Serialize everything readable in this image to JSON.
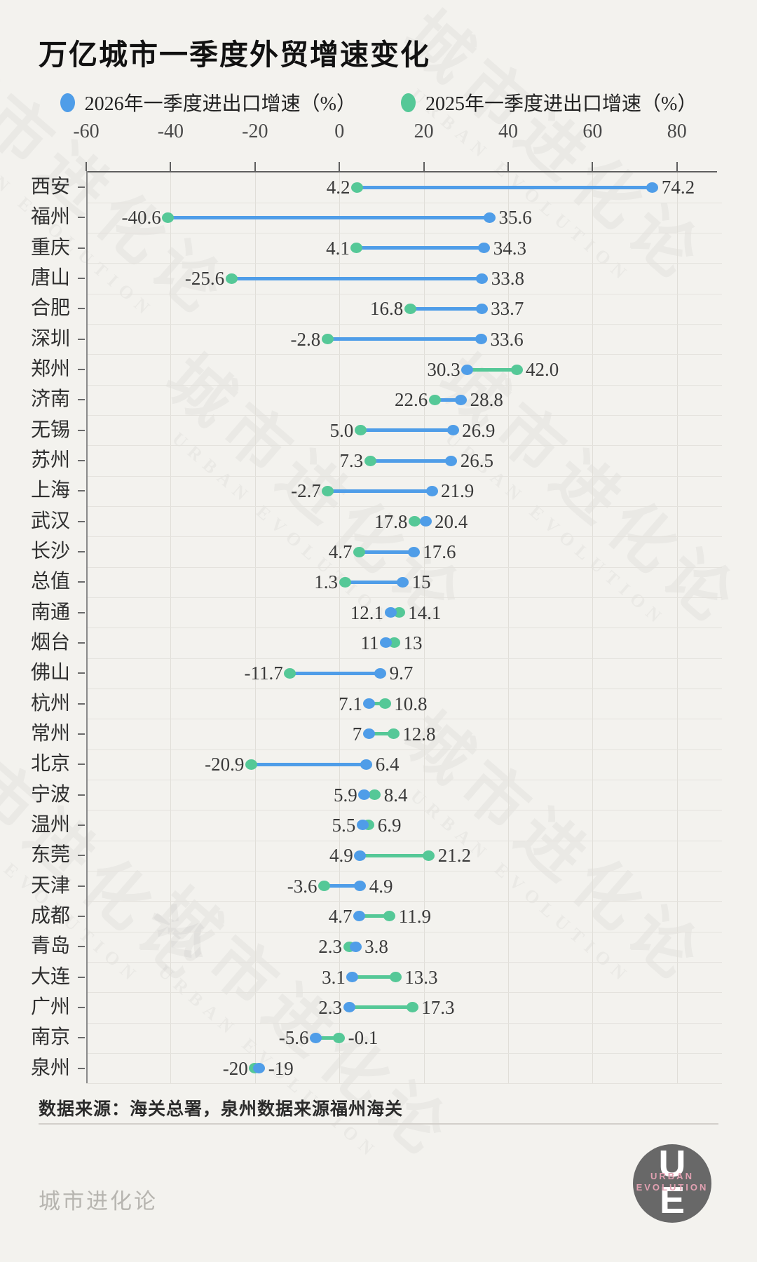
{
  "title": "万亿城市一季度外贸增速变化",
  "legend": [
    {
      "label": "2026年一季度进出口增速（%）",
      "color": "#4f9de8"
    },
    {
      "label": "2025年一季度进出口增速（%）",
      "color": "#55c897"
    }
  ],
  "source_note": "数据来源：海关总署，泉州数据来源福州海关",
  "footer": {
    "brand": "城市进化论",
    "logo_monogram_top": "U",
    "logo_monogram_bottom": "E",
    "logo_caption_line1": "URBAN",
    "logo_caption_line2": "EVOLUTION"
  },
  "watermark": {
    "big": "城市进化论",
    "small": "URBAN EVOLUTION"
  },
  "colors": {
    "blue": "#4f9de8",
    "green": "#55c897",
    "background": "#f3f2ee",
    "axis": "#5f5f5f",
    "grid": "#e0ded8",
    "value_label": "#3a3a3a"
  },
  "chart_data": {
    "type": "dumbbell",
    "title": "万亿城市一季度外贸增速变化",
    "x_axis": {
      "min": -60,
      "max": 80,
      "ticks": [
        -60,
        -40,
        -20,
        0,
        20,
        40,
        60,
        80
      ],
      "unit": "%"
    },
    "legend_position": "top",
    "grid": true,
    "series_names": [
      "2026年一季度进出口增速（%）",
      "2025年一季度进出口增速（%）"
    ],
    "rows": [
      {
        "city": "西安",
        "v2026": 74.2,
        "label2026": "74.2",
        "v2025": 4.2,
        "label2025": "4.2"
      },
      {
        "city": "福州",
        "v2026": 35.6,
        "label2026": "35.6",
        "v2025": -40.6,
        "label2025": "-40.6"
      },
      {
        "city": "重庆",
        "v2026": 34.3,
        "label2026": "34.3",
        "v2025": 4.1,
        "label2025": "4.1"
      },
      {
        "city": "唐山",
        "v2026": 33.8,
        "label2026": "33.8",
        "v2025": -25.6,
        "label2025": "-25.6"
      },
      {
        "city": "合肥",
        "v2026": 33.7,
        "label2026": "33.7",
        "v2025": 16.8,
        "label2025": "16.8"
      },
      {
        "city": "深圳",
        "v2026": 33.6,
        "label2026": "33.6",
        "v2025": -2.8,
        "label2025": "-2.8"
      },
      {
        "city": "郑州",
        "v2026": 30.3,
        "label2026": "30.3",
        "v2025": 42.0,
        "label2025": "42.0"
      },
      {
        "city": "济南",
        "v2026": 28.8,
        "label2026": "28.8",
        "v2025": 22.6,
        "label2025": "22.6"
      },
      {
        "city": "无锡",
        "v2026": 26.9,
        "label2026": "26.9",
        "v2025": 5.0,
        "label2025": "5.0"
      },
      {
        "city": "苏州",
        "v2026": 26.5,
        "label2026": "26.5",
        "v2025": 7.3,
        "label2025": "7.3"
      },
      {
        "city": "上海",
        "v2026": 21.9,
        "label2026": "21.9",
        "v2025": -2.7,
        "label2025": "-2.7"
      },
      {
        "city": "武汉",
        "v2026": 20.4,
        "label2026": "20.4",
        "v2025": 17.8,
        "label2025": "17.8"
      },
      {
        "city": "长沙",
        "v2026": 17.6,
        "label2026": "17.6",
        "v2025": 4.7,
        "label2025": "4.7"
      },
      {
        "city": "总值",
        "v2026": 15,
        "label2026": "15",
        "v2025": 1.3,
        "label2025": "1.3"
      },
      {
        "city": "南通",
        "v2026": 12.1,
        "label2026": "12.1",
        "v2025": 14.1,
        "label2025": "14.1"
      },
      {
        "city": "烟台",
        "v2026": 11,
        "label2026": "11",
        "v2025": 13,
        "label2025": "13"
      },
      {
        "city": "佛山",
        "v2026": 9.7,
        "label2026": "9.7",
        "v2025": -11.7,
        "label2025": "-11.7"
      },
      {
        "city": "杭州",
        "v2026": 7.1,
        "label2026": "7.1",
        "v2025": 10.8,
        "label2025": "10.8"
      },
      {
        "city": "常州",
        "v2026": 7,
        "label2026": "7",
        "v2025": 12.8,
        "label2025": "12.8"
      },
      {
        "city": "北京",
        "v2026": 6.4,
        "label2026": "6.4",
        "v2025": -20.9,
        "label2025": "-20.9"
      },
      {
        "city": "宁波",
        "v2026": 5.9,
        "label2026": "5.9",
        "v2025": 8.4,
        "label2025": "8.4"
      },
      {
        "city": "温州",
        "v2026": 5.5,
        "label2026": "5.5",
        "v2025": 6.9,
        "label2025": "6.9"
      },
      {
        "city": "东莞",
        "v2026": 4.9,
        "label2026": "4.9",
        "v2025": 21.2,
        "label2025": "21.2"
      },
      {
        "city": "天津",
        "v2026": 4.9,
        "label2026": "4.9",
        "v2025": -3.6,
        "label2025": "-3.6"
      },
      {
        "city": "成都",
        "v2026": 4.7,
        "label2026": "4.7",
        "v2025": 11.9,
        "label2025": "11.9"
      },
      {
        "city": "青岛",
        "v2026": 3.8,
        "label2026": "3.8",
        "v2025": 2.3,
        "label2025": "2.3"
      },
      {
        "city": "大连",
        "v2026": 3.1,
        "label2026": "3.1",
        "v2025": 13.3,
        "label2025": "13.3"
      },
      {
        "city": "广州",
        "v2026": 2.3,
        "label2026": "2.3",
        "v2025": 17.3,
        "label2025": "17.3"
      },
      {
        "city": "南京",
        "v2026": -5.6,
        "label2026": "-5.6",
        "v2025": -0.1,
        "label2025": "-0.1"
      },
      {
        "city": "泉州",
        "v2026": -19,
        "label2026": "-19",
        "v2025": -20,
        "label2025": "-20"
      }
    ]
  }
}
